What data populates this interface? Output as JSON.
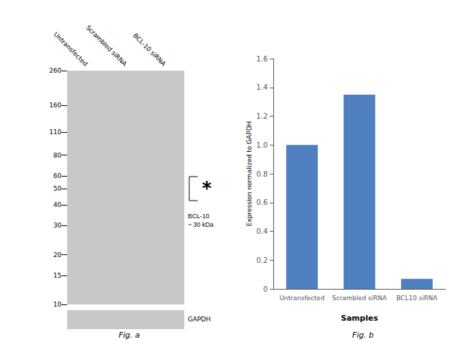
{
  "chart_data": [
    {
      "type": "blot",
      "title": "Fig. a",
      "categories": [
        "Untransfected",
        "Scrambled siRNA",
        "BCL-10 siRNA"
      ],
      "log": "y",
      "ylim": [
        10,
        260
      ],
      "yticks": [
        260,
        160,
        110,
        80,
        60,
        50,
        40,
        30,
        20,
        15,
        10
      ],
      "color": "#c8c8c8",
      "annotations": [
        "BCL-10\n~ 30 kDa",
        "*",
        "GAPDH"
      ]
    },
    {
      "type": "bar",
      "title": "Fig. b",
      "categories": [
        "Untransfected",
        "Scrambled siRNA",
        "BCL10 siRNA"
      ],
      "values": [
        1.0,
        1.35,
        0.07
      ],
      "color": "#4f7fbe",
      "xlabel": "Samples",
      "ylabel": "Expression normalized to GAPDH",
      "ylim": [
        0,
        1.6
      ],
      "yticks": [
        0,
        0.2,
        0.4,
        0.6,
        0.8,
        {
          "value": 1.0,
          "label": "1.0"
        },
        1.2,
        1.4,
        1.6
      ],
      "grid": false
    }
  ]
}
